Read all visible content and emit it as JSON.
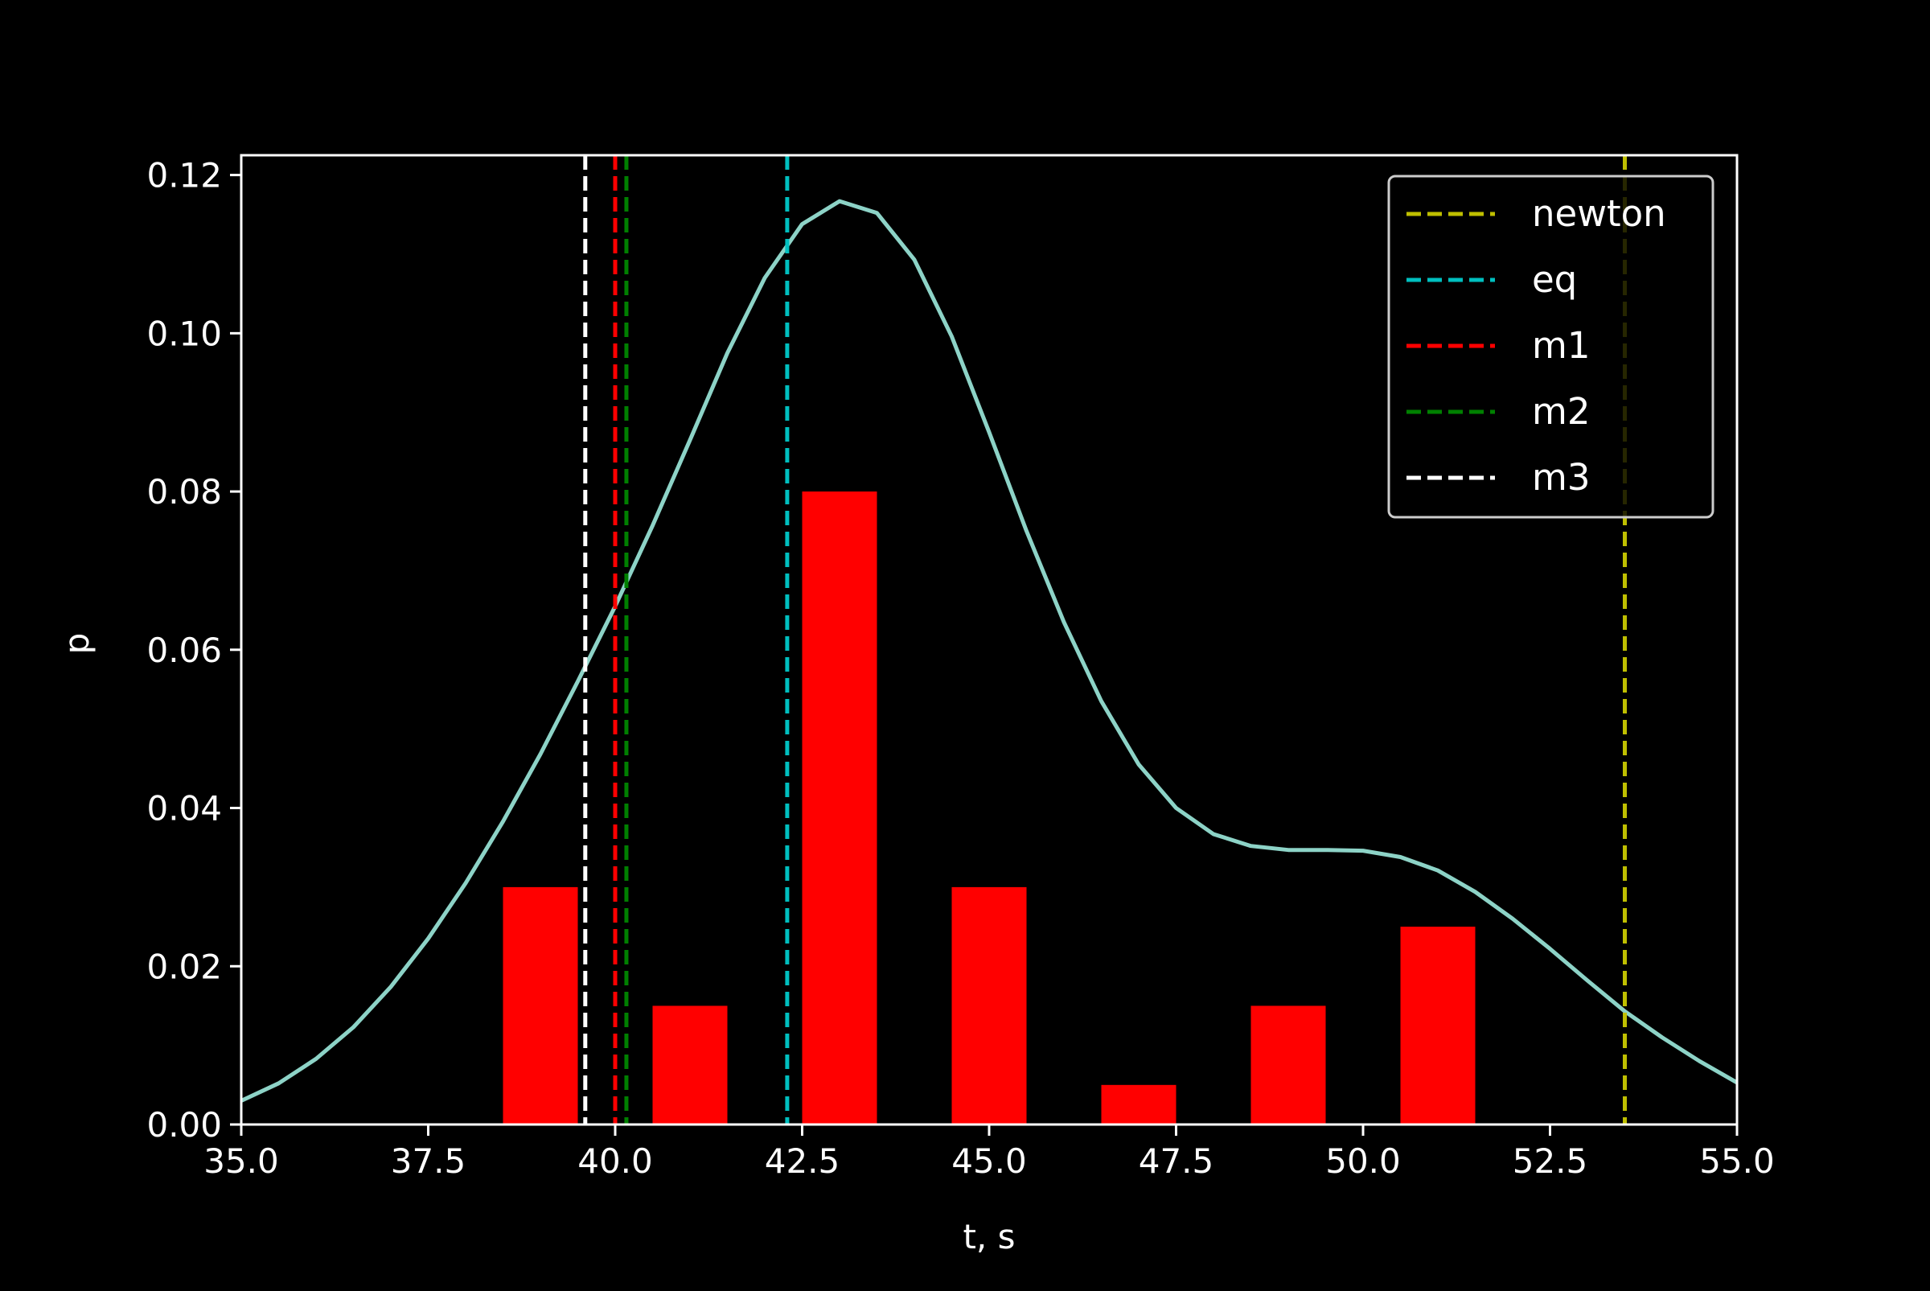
{
  "chart_data": {
    "type": "bar",
    "title": "",
    "xlabel": "t, s",
    "ylabel": "p",
    "xlim": [
      35.0,
      55.0
    ],
    "ylim": [
      0.0,
      0.1225
    ],
    "grid": false,
    "legend_position": "top-right",
    "x_ticks": [
      {
        "value": 35.0,
        "label": "35.0"
      },
      {
        "value": 37.5,
        "label": "37.5"
      },
      {
        "value": 40.0,
        "label": "40.0"
      },
      {
        "value": 42.5,
        "label": "42.5"
      },
      {
        "value": 45.0,
        "label": "45.0"
      },
      {
        "value": 47.5,
        "label": "47.5"
      },
      {
        "value": 50.0,
        "label": "50.0"
      },
      {
        "value": 52.5,
        "label": "52.5"
      },
      {
        "value": 55.0,
        "label": "55.0"
      }
    ],
    "y_ticks": [
      {
        "value": 0.0,
        "label": "0.00"
      },
      {
        "value": 0.02,
        "label": "0.02"
      },
      {
        "value": 0.04,
        "label": "0.04"
      },
      {
        "value": 0.06,
        "label": "0.06"
      },
      {
        "value": 0.08,
        "label": "0.08"
      },
      {
        "value": 0.1,
        "label": "0.10"
      },
      {
        "value": 0.12,
        "label": "0.12"
      }
    ],
    "histogram": {
      "color": "#ff0000",
      "bars": [
        {
          "x0": 38.5,
          "x1": 39.5,
          "value": 0.03
        },
        {
          "x0": 40.5,
          "x1": 41.5,
          "value": 0.015
        },
        {
          "x0": 42.5,
          "x1": 43.5,
          "value": 0.08
        },
        {
          "x0": 44.5,
          "x1": 45.5,
          "value": 0.03
        },
        {
          "x0": 46.5,
          "x1": 47.5,
          "value": 0.005
        },
        {
          "x0": 48.5,
          "x1": 49.5,
          "value": 0.015
        },
        {
          "x0": 50.5,
          "x1": 51.5,
          "value": 0.025
        }
      ]
    },
    "density_curve": {
      "color": "#8dd3c7",
      "points": [
        [
          35.0,
          0.003
        ],
        [
          35.5,
          0.0052
        ],
        [
          36.0,
          0.0083
        ],
        [
          36.5,
          0.0123
        ],
        [
          37.0,
          0.0174
        ],
        [
          37.5,
          0.0235
        ],
        [
          38.0,
          0.0305
        ],
        [
          38.5,
          0.0383
        ],
        [
          39.0,
          0.0468
        ],
        [
          39.5,
          0.056
        ],
        [
          40.0,
          0.0655
        ],
        [
          40.5,
          0.0757
        ],
        [
          41.0,
          0.0865
        ],
        [
          41.5,
          0.0975
        ],
        [
          42.0,
          0.107
        ],
        [
          42.5,
          0.1138
        ],
        [
          43.0,
          0.1167
        ],
        [
          43.5,
          0.1152
        ],
        [
          44.0,
          0.1093
        ],
        [
          44.5,
          0.0996
        ],
        [
          45.0,
          0.0875
        ],
        [
          45.5,
          0.075
        ],
        [
          46.0,
          0.0635
        ],
        [
          46.5,
          0.0535
        ],
        [
          47.0,
          0.0455
        ],
        [
          47.5,
          0.04
        ],
        [
          48.0,
          0.0367
        ],
        [
          48.5,
          0.0352
        ],
        [
          49.0,
          0.0347
        ],
        [
          49.5,
          0.0347
        ],
        [
          50.0,
          0.0346
        ],
        [
          50.5,
          0.0338
        ],
        [
          51.0,
          0.0321
        ],
        [
          51.5,
          0.0294
        ],
        [
          52.0,
          0.026
        ],
        [
          52.5,
          0.0222
        ],
        [
          53.0,
          0.0182
        ],
        [
          53.5,
          0.0143
        ],
        [
          54.0,
          0.011
        ],
        [
          54.5,
          0.008
        ],
        [
          55.0,
          0.0053
        ]
      ]
    },
    "vlines": [
      {
        "name": "newton",
        "x": 53.5,
        "color": "#bfbf00"
      },
      {
        "name": "eq",
        "x": 42.3,
        "color": "#00bfbf"
      },
      {
        "name": "m1",
        "x": 40.0,
        "color": "#ff0000"
      },
      {
        "name": "m2",
        "x": 40.15,
        "color": "#008000"
      },
      {
        "name": "m3",
        "x": 39.6,
        "color": "#ffffff"
      }
    ]
  }
}
